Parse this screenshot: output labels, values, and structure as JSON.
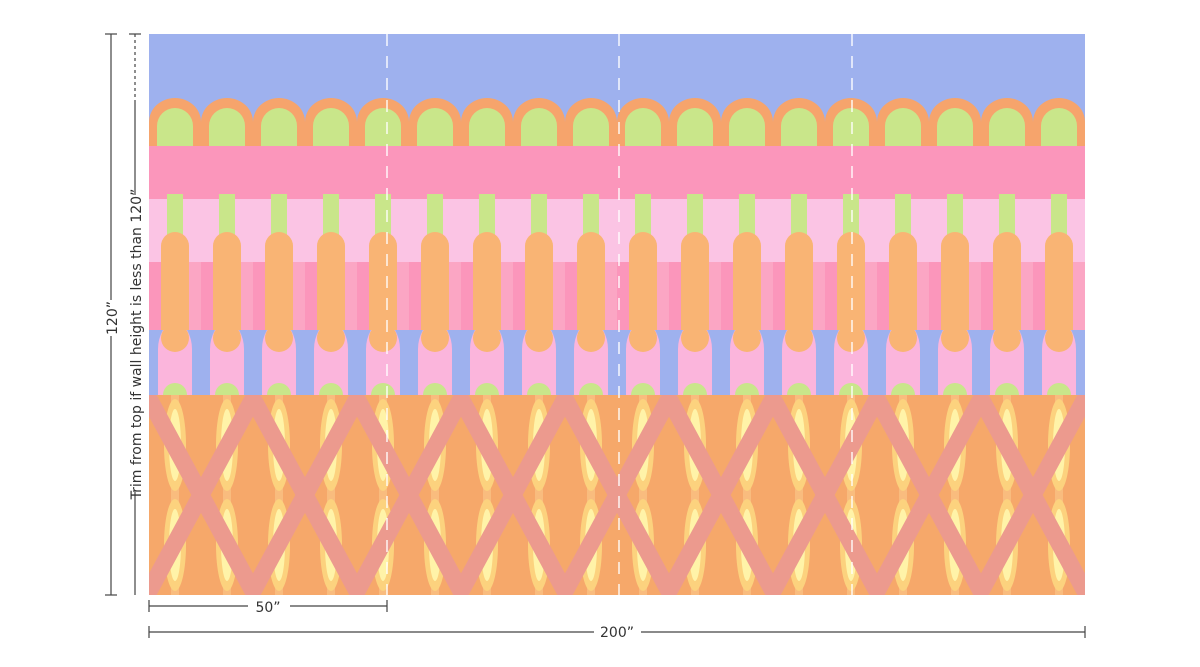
{
  "dimensions": {
    "height_label": "120”",
    "trim_note": "Trim from top if wall height is less than 120”",
    "panel_width_label": "50”",
    "total_width_label": "200”"
  }
}
